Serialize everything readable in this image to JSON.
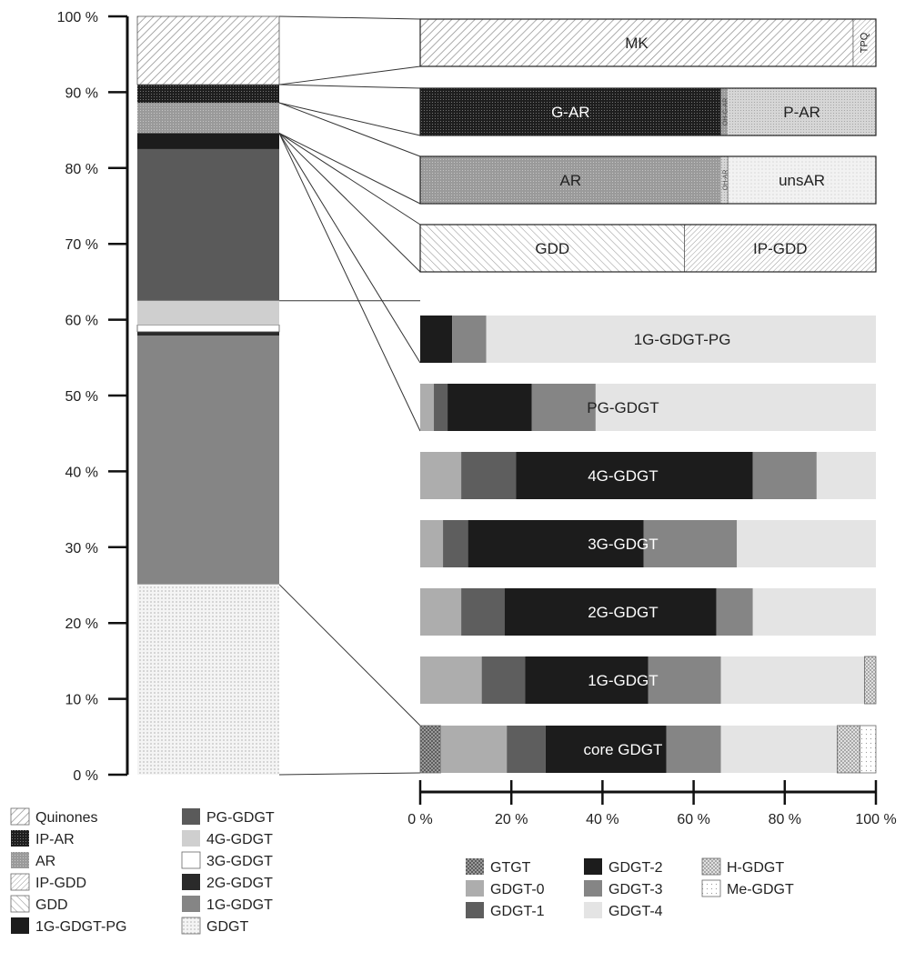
{
  "colors": {
    "Quinones": "#ffffff",
    "IP-AR": "#1a1a1a",
    "AR": "#9a9a9a",
    "IP-GDD": "#ffffff",
    "GDD": "#ffffff",
    "1G-GDGT-PG": "#1c1c1c",
    "PG-GDGT": "#5a5a5a",
    "4G-GDGT": "#cfcfcf",
    "3G-GDGT": "#ffffff",
    "2G-GDGT": "#2a2a2a",
    "1G-GDGT": "#858585",
    "GDGT": "#f2f2f2",
    "GTGT": "#7a7a7a",
    "GDGT-0": "#adadad",
    "GDGT-1": "#5e5e5e",
    "GDGT-2": "#1c1c1c",
    "GDGT-3": "#858585",
    "GDGT-4": "#e4e4e4",
    "H-GDGT": "#bdbdbd",
    "Me-GDGT": "#ffffff",
    "MK": "#ffffff",
    "TPQ": "#ffffff",
    "G-AR": "#1e1e1e",
    "OH-G-AR": "#808080",
    "P-AR": "#d6d6d6",
    "unsAR": "#f0f0f0",
    "OH-AR": "#b5b5b5"
  },
  "chart_data": [
    {
      "type": "bar",
      "orientation": "vertical-stacked",
      "ylim": [
        0,
        100
      ],
      "y_ticks": [
        "0 %",
        "10 %",
        "20 %",
        "30 %",
        "40 %",
        "50 %",
        "60 %",
        "70 %",
        "80 %",
        "90 %",
        "100 %"
      ],
      "segments": [
        {
          "name": "GDGT",
          "value": 25.1
        },
        {
          "name": "1G-GDGT",
          "value": 32.8
        },
        {
          "name": "2G-GDGT",
          "value": 0.5
        },
        {
          "name": "3G-GDGT",
          "value": 0.9
        },
        {
          "name": "4G-GDGT",
          "value": 3.2
        },
        {
          "name": "PG-GDGT",
          "value": 20.0
        },
        {
          "name": "1G-GDGT-PG",
          "value": 2.1
        },
        {
          "name": "GDD",
          "value": 0
        },
        {
          "name": "IP-GDD",
          "value": 0
        },
        {
          "name": "AR",
          "value": 4.0
        },
        {
          "name": "IP-AR",
          "value": 2.4
        },
        {
          "name": "Quinones",
          "value": 9.0
        }
      ],
      "legend": [
        [
          "Quinones",
          "IP-AR",
          "AR",
          "IP-GDD",
          "GDD",
          "1G-GDGT-PG"
        ],
        [
          "PG-GDGT",
          "4G-GDGT",
          "3G-GDGT",
          "2G-GDGT",
          "1G-GDGT",
          "GDGT"
        ]
      ]
    },
    {
      "type": "bar",
      "orientation": "horizontal-stacked",
      "xlim": [
        0,
        100
      ],
      "x_ticks": [
        "0 %",
        "20 %",
        "40 %",
        "60 %",
        "80 %",
        "100 %"
      ],
      "bars": [
        {
          "label": "MK",
          "segments": [
            {
              "name": "MK",
              "value": 95
            },
            {
              "name": "TPQ",
              "value": 5
            }
          ],
          "small_labels": [
            "TPQ"
          ]
        },
        {
          "label": "G-AR",
          "extra_label": "P-AR",
          "segments": [
            {
              "name": "G-AR",
              "value": 66
            },
            {
              "name": "OH-G-AR",
              "value": 1.5
            },
            {
              "name": "P-AR",
              "value": 32.5
            }
          ],
          "small_labels": [
            "OH-G-AR"
          ]
        },
        {
          "label": "AR",
          "extra_label": "unsAR",
          "segments": [
            {
              "name": "AR",
              "value": 66
            },
            {
              "name": "OH-AR",
              "value": 1.5
            },
            {
              "name": "unsAR",
              "value": 32.5
            }
          ],
          "small_labels": [
            "OH-AR"
          ]
        },
        {
          "label": "GDD",
          "extra_label": "IP-GDD",
          "segments": [
            {
              "name": "GDD",
              "value": 58
            },
            {
              "name": "IP-GDD",
              "value": 42
            }
          ]
        },
        {
          "label": "1G-GDGT-PG",
          "segments": [
            {
              "name": "GDGT-2",
              "value": 7
            },
            {
              "name": "GDGT-3",
              "value": 7.5
            },
            {
              "name": "GDGT-4",
              "value": 85.5
            }
          ]
        },
        {
          "label": "PG-GDGT",
          "segments": [
            {
              "name": "GDGT-0",
              "value": 3
            },
            {
              "name": "GDGT-1",
              "value": 3
            },
            {
              "name": "GDGT-2",
              "value": 18.5
            },
            {
              "name": "GDGT-3",
              "value": 14
            },
            {
              "name": "GDGT-4",
              "value": 61.5
            }
          ]
        },
        {
          "label": "4G-GDGT",
          "segments": [
            {
              "name": "GDGT-0",
              "value": 9
            },
            {
              "name": "GDGT-1",
              "value": 12
            },
            {
              "name": "GDGT-2",
              "value": 52
            },
            {
              "name": "GDGT-3",
              "value": 14
            },
            {
              "name": "GDGT-4",
              "value": 13
            }
          ]
        },
        {
          "label": "3G-GDGT",
          "segments": [
            {
              "name": "GDGT-0",
              "value": 5
            },
            {
              "name": "GDGT-1",
              "value": 5.5
            },
            {
              "name": "GDGT-2",
              "value": 38.5
            },
            {
              "name": "GDGT-3",
              "value": 20.5
            },
            {
              "name": "GDGT-4",
              "value": 30.5
            }
          ]
        },
        {
          "label": "2G-GDGT",
          "segments": [
            {
              "name": "GDGT-0",
              "value": 9
            },
            {
              "name": "GDGT-1",
              "value": 9.5
            },
            {
              "name": "GDGT-2",
              "value": 46.5
            },
            {
              "name": "GDGT-3",
              "value": 8
            },
            {
              "name": "GDGT-4",
              "value": 27
            }
          ]
        },
        {
          "label": "1G-GDGT",
          "segments": [
            {
              "name": "GDGT-0",
              "value": 13.5
            },
            {
              "name": "GDGT-1",
              "value": 9.5
            },
            {
              "name": "GDGT-2",
              "value": 27
            },
            {
              "name": "GDGT-3",
              "value": 16
            },
            {
              "name": "GDGT-4",
              "value": 31.5
            },
            {
              "name": "H-GDGT",
              "value": 2.5
            }
          ]
        },
        {
          "label": "core GDGT",
          "segments": [
            {
              "name": "GTGT",
              "value": 4.5
            },
            {
              "name": "GDGT-0",
              "value": 14.5
            },
            {
              "name": "GDGT-1",
              "value": 8.5
            },
            {
              "name": "GDGT-2",
              "value": 26.5
            },
            {
              "name": "GDGT-3",
              "value": 12
            },
            {
              "name": "GDGT-4",
              "value": 25.5
            },
            {
              "name": "H-GDGT",
              "value": 5
            },
            {
              "name": "Me-GDGT",
              "value": 3.5
            }
          ]
        }
      ],
      "legend": [
        [
          "GTGT",
          "GDGT-0",
          "GDGT-1"
        ],
        [
          "GDGT-2",
          "GDGT-3",
          "GDGT-4"
        ],
        [
          "H-GDGT",
          "Me-GDGT"
        ]
      ]
    }
  ]
}
